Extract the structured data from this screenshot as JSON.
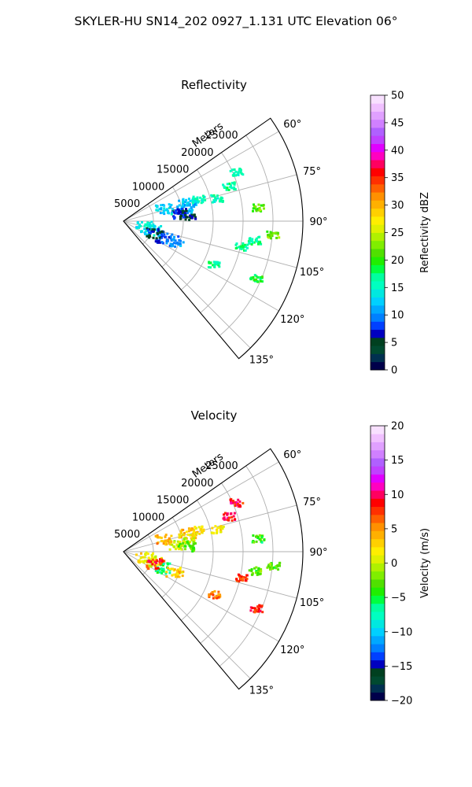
{
  "figure": {
    "suptitle": "SKYLER-HU  SN14_202  0927_1.131 UTC Elevation 06°"
  },
  "chart_data": [
    {
      "type": "heatmap",
      "projection": "polar-sector",
      "title": "Reflectivity",
      "radial_label": "Meters",
      "radial_ticks": [
        5000,
        10000,
        15000,
        20000,
        25000
      ],
      "radial_tick_labels": [
        "5000",
        "10000",
        "15000",
        "20000",
        "25000"
      ],
      "range_max_m": 30000,
      "azimuth_range_deg": [
        55,
        140
      ],
      "azimuth_ticks": [
        60,
        75,
        90,
        105,
        120,
        135
      ],
      "azimuth_tick_labels": [
        "60°",
        "75°",
        "90°",
        "105°",
        "120°",
        "135°"
      ],
      "grid": true,
      "colorbar": {
        "label": "Reflectivity dBZ",
        "range": [
          0,
          50
        ],
        "ticks": [
          0,
          5,
          10,
          15,
          20,
          25,
          30,
          35,
          40,
          45,
          50
        ],
        "tick_labels": [
          "0",
          "5",
          "10",
          "15",
          "20",
          "25",
          "30",
          "35",
          "40",
          "45",
          "50"
        ],
        "colors": [
          "#00004a",
          "#003050",
          "#004a30",
          "#004020",
          "#0000c0",
          "#0040ff",
          "#0080ff",
          "#00a8ff",
          "#00d0ff",
          "#00e8e0",
          "#00ffc0",
          "#00ffa0",
          "#00ff40",
          "#20ee00",
          "#50e000",
          "#80ee00",
          "#b0f000",
          "#e0f000",
          "#ffee00",
          "#ffd000",
          "#ffb000",
          "#ff9000",
          "#ff6000",
          "#ff3000",
          "#ff0000",
          "#ff0060",
          "#ff00c0",
          "#e000ff",
          "#c040ff",
          "#b060ff",
          "#d080ff",
          "#e0a0ff",
          "#f0c0ff",
          "#f8e0ff"
        ]
      },
      "echoes": [
        {
          "azimuth_deg": 73,
          "range_m": 11000,
          "value_dbz": 12
        },
        {
          "azimuth_deg": 78,
          "range_m": 10500,
          "value_dbz": 11
        },
        {
          "azimuth_deg": 81,
          "range_m": 9000,
          "value_dbz": 7
        },
        {
          "azimuth_deg": 84,
          "range_m": 10500,
          "value_dbz": 5
        },
        {
          "azimuth_deg": 72,
          "range_m": 7000,
          "value_dbz": 13
        },
        {
          "azimuth_deg": 73,
          "range_m": 13000,
          "value_dbz": 16
        },
        {
          "azimuth_deg": 66,
          "range_m": 20500,
          "value_dbz": 16
        },
        {
          "azimuth_deg": 71,
          "range_m": 18500,
          "value_dbz": 16
        },
        {
          "azimuth_deg": 76,
          "range_m": 16000,
          "value_dbz": 16
        },
        {
          "azimuth_deg": 84,
          "range_m": 22500,
          "value_dbz": 22
        },
        {
          "azimuth_deg": 95,
          "range_m": 25000,
          "value_dbz": 22
        },
        {
          "azimuth_deg": 98,
          "range_m": 22000,
          "value_dbz": 17
        },
        {
          "azimuth_deg": 102,
          "range_m": 20000,
          "value_dbz": 17
        },
        {
          "azimuth_deg": 115,
          "range_m": 16500,
          "value_dbz": 17
        },
        {
          "azimuth_deg": 113,
          "range_m": 24000,
          "value_dbz": 19
        },
        {
          "azimuth_deg": 103,
          "range_m": 3500,
          "value_dbz": 14
        },
        {
          "azimuth_deg": 107,
          "range_m": 5000,
          "value_dbz": 14
        },
        {
          "azimuth_deg": 112,
          "range_m": 7000,
          "value_dbz": 8
        },
        {
          "azimuth_deg": 111,
          "range_m": 9000,
          "value_dbz": 10
        },
        {
          "azimuth_deg": 110,
          "range_m": 5500,
          "value_dbz": 6
        }
      ]
    },
    {
      "type": "heatmap",
      "projection": "polar-sector",
      "title": "Velocity",
      "radial_label": "Meters",
      "radial_ticks": [
        5000,
        10000,
        15000,
        20000,
        25000
      ],
      "radial_tick_labels": [
        "5000",
        "10000",
        "15000",
        "20000",
        "25000"
      ],
      "range_max_m": 30000,
      "azimuth_range_deg": [
        55,
        140
      ],
      "azimuth_ticks": [
        60,
        75,
        90,
        105,
        120,
        135
      ],
      "azimuth_tick_labels": [
        "60°",
        "75°",
        "90°",
        "105°",
        "120°",
        "135°"
      ],
      "grid": true,
      "colorbar": {
        "label": "Velocity (m/s)",
        "range": [
          -20,
          20
        ],
        "ticks": [
          -20,
          -15,
          -10,
          -5,
          0,
          5,
          10,
          15,
          20
        ],
        "tick_labels": [
          "−20",
          "−15",
          "−10",
          "−5",
          "0",
          "5",
          "10",
          "15",
          "20"
        ],
        "colors": [
          "#00004a",
          "#003050",
          "#004a30",
          "#004020",
          "#0000c0",
          "#0040ff",
          "#0080ff",
          "#00a8ff",
          "#00d0ff",
          "#00e8e0",
          "#00ffc0",
          "#00ffa0",
          "#00ff40",
          "#20ee00",
          "#50e000",
          "#80ee00",
          "#b0f000",
          "#e0f000",
          "#ffee00",
          "#ffd000",
          "#ffb000",
          "#ff9000",
          "#ff6000",
          "#ff3000",
          "#ff0000",
          "#ff0060",
          "#ff00c0",
          "#e000ff",
          "#c040ff",
          "#b060ff",
          "#d080ff",
          "#e0a0ff",
          "#f0c0ff",
          "#f8e0ff"
        ]
      },
      "echoes": [
        {
          "azimuth_deg": 73,
          "range_m": 11000,
          "value_ms": 4
        },
        {
          "azimuth_deg": 78,
          "range_m": 10500,
          "value_ms": 1
        },
        {
          "azimuth_deg": 81,
          "range_m": 9000,
          "value_ms": 0
        },
        {
          "azimuth_deg": 84,
          "range_m": 10500,
          "value_ms": -3
        },
        {
          "azimuth_deg": 72,
          "range_m": 7000,
          "value_ms": 4
        },
        {
          "azimuth_deg": 73,
          "range_m": 13000,
          "value_ms": 2
        },
        {
          "azimuth_deg": 66,
          "range_m": 20500,
          "value_ms": 9
        },
        {
          "azimuth_deg": 71,
          "range_m": 18500,
          "value_ms": 9
        },
        {
          "azimuth_deg": 76,
          "range_m": 16000,
          "value_ms": 2
        },
        {
          "azimuth_deg": 84,
          "range_m": 22500,
          "value_ms": -4
        },
        {
          "azimuth_deg": 95,
          "range_m": 25000,
          "value_ms": -3
        },
        {
          "azimuth_deg": 98,
          "range_m": 22000,
          "value_ms": -3
        },
        {
          "azimuth_deg": 102,
          "range_m": 20000,
          "value_ms": 8
        },
        {
          "azimuth_deg": 115,
          "range_m": 16500,
          "value_ms": 6
        },
        {
          "azimuth_deg": 113,
          "range_m": 24000,
          "value_ms": 8
        },
        {
          "azimuth_deg": 103,
          "range_m": 3500,
          "value_ms": 2
        },
        {
          "azimuth_deg": 107,
          "range_m": 5000,
          "value_ms": 1
        },
        {
          "azimuth_deg": 112,
          "range_m": 7000,
          "value_ms": -6
        },
        {
          "azimuth_deg": 111,
          "range_m": 9000,
          "value_ms": 3
        },
        {
          "azimuth_deg": 110,
          "range_m": 5500,
          "value_ms": 8
        }
      ]
    }
  ]
}
